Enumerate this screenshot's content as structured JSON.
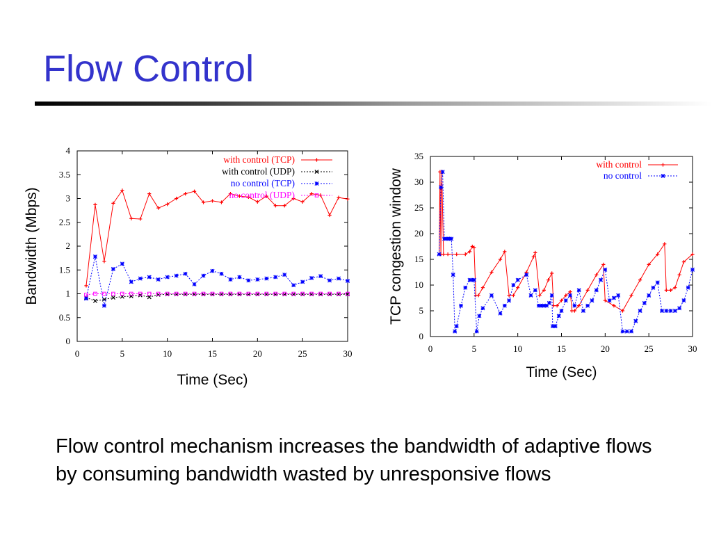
{
  "slide": {
    "title": "Flow Control",
    "caption": "Flow control mechanism increases the bandwidth of adaptive flows by consuming bandwidth wasted by unresponsive flows"
  },
  "chart_data": [
    {
      "type": "line",
      "xlabel": "Time (Sec)",
      "ylabel": "Bandwidth (Mbps)",
      "xlim": [
        0,
        30
      ],
      "ylim": [
        0,
        4
      ],
      "xticks": [
        "0",
        "5",
        "10",
        "15",
        "20",
        "25",
        "30"
      ],
      "yticks": [
        "0",
        "0.5",
        "1",
        "1.5",
        "2",
        "2.5",
        "3",
        "3.5",
        "4"
      ],
      "legend_position": "top-right",
      "grid": false,
      "series": [
        {
          "name": "with control (TCP)",
          "color": "#ff0000",
          "dash": "solid",
          "marker": "plus",
          "x": [
            1,
            2,
            3,
            4,
            5,
            6,
            7,
            8,
            9,
            10,
            11,
            12,
            13,
            14,
            15,
            16,
            17,
            18,
            19,
            20,
            21,
            22,
            23,
            24,
            25,
            26,
            27,
            28,
            29,
            30
          ],
          "y": [
            1.17,
            2.87,
            1.68,
            2.9,
            3.17,
            2.58,
            2.57,
            3.1,
            2.8,
            2.88,
            3.0,
            3.1,
            3.15,
            2.92,
            2.95,
            2.92,
            3.1,
            3.05,
            3.03,
            2.93,
            3.05,
            2.85,
            2.85,
            3.0,
            2.93,
            3.1,
            3.07,
            2.65,
            3.02,
            2.99
          ]
        },
        {
          "name": "with control (UDP)",
          "color": "#000000",
          "dash": "2,2",
          "marker": "cross",
          "x": [
            1,
            2,
            3,
            4,
            5,
            6,
            7,
            8,
            9,
            10,
            11,
            12,
            13,
            14,
            15,
            16,
            17,
            18,
            19,
            20,
            21,
            22,
            23,
            24,
            25,
            26,
            27,
            28,
            29,
            30
          ],
          "y": [
            0.92,
            0.85,
            0.88,
            0.92,
            0.94,
            0.95,
            0.97,
            0.93,
            0.98,
            0.99,
            0.99,
            0.99,
            0.99,
            0.99,
            0.99,
            0.99,
            0.99,
            0.99,
            0.99,
            0.99,
            0.99,
            0.99,
            0.99,
            0.99,
            0.99,
            0.99,
            0.99,
            0.99,
            0.99,
            0.99
          ]
        },
        {
          "name": "no control (TCP)",
          "color": "#0000ff",
          "dash": "2,2",
          "marker": "star",
          "x": [
            1,
            2,
            3,
            4,
            5,
            6,
            7,
            8,
            9,
            10,
            11,
            12,
            13,
            14,
            15,
            16,
            17,
            18,
            19,
            20,
            21,
            22,
            23,
            24,
            25,
            26,
            27,
            28,
            29,
            30
          ],
          "y": [
            0.9,
            1.78,
            0.75,
            1.52,
            1.63,
            1.25,
            1.32,
            1.35,
            1.3,
            1.35,
            1.38,
            1.42,
            1.2,
            1.38,
            1.48,
            1.42,
            1.3,
            1.35,
            1.28,
            1.3,
            1.32,
            1.35,
            1.4,
            1.18,
            1.25,
            1.33,
            1.37,
            1.28,
            1.32,
            1.27
          ]
        },
        {
          "name": "no control (UDP)",
          "color": "#ff00ff",
          "dash": "2,2",
          "marker": "square",
          "x": [
            1,
            2,
            3,
            4,
            5,
            6,
            7,
            8,
            9,
            10,
            11,
            12,
            13,
            14,
            15,
            16,
            17,
            18,
            19,
            20,
            21,
            22,
            23,
            24,
            25,
            26,
            27,
            28,
            29,
            30
          ],
          "y": [
            0.98,
            1.0,
            1.0,
            1.0,
            1.0,
            1.0,
            1.0,
            1.0,
            1.0,
            1.0,
            1.0,
            1.0,
            1.0,
            1.0,
            1.0,
            1.0,
            1.0,
            1.0,
            1.0,
            1.0,
            1.0,
            1.0,
            1.0,
            1.0,
            1.0,
            1.0,
            1.0,
            1.0,
            1.0,
            1.0
          ]
        }
      ]
    },
    {
      "type": "line",
      "xlabel": "Time (Sec)",
      "ylabel": "TCP congestion window",
      "xlim": [
        0,
        30
      ],
      "ylim": [
        0,
        35
      ],
      "xticks": [
        "0",
        "5",
        "10",
        "15",
        "20",
        "25",
        "30"
      ],
      "yticks": [
        "0",
        "5",
        "10",
        "15",
        "20",
        "25",
        "30",
        "35"
      ],
      "legend_position": "top-right",
      "grid": false,
      "series": [
        {
          "name": "with control",
          "color": "#ff0000",
          "dash": "solid",
          "marker": "plus",
          "x": [
            1,
            1.1,
            1.2,
            1.3,
            1.5,
            2,
            3,
            4,
            4.5,
            4.8,
            5,
            5.2,
            5.5,
            6,
            7,
            8,
            8.5,
            9,
            9.5,
            10,
            11,
            11.8,
            12,
            12.5,
            13,
            13.5,
            13.9,
            14.1,
            14.5,
            15,
            15.5,
            16,
            16.2,
            16.5,
            17,
            18,
            19,
            19.8,
            20,
            21,
            22,
            23,
            24,
            25,
            26,
            26.8,
            27,
            27.5,
            28,
            28.5,
            29,
            30
          ],
          "y": [
            16,
            32,
            16,
            32,
            16,
            16,
            16,
            16,
            16.5,
            17.5,
            17.3,
            8,
            8,
            9.5,
            12.5,
            15,
            16.5,
            8,
            8,
            9.5,
            12.5,
            15.5,
            16.3,
            8,
            9,
            11,
            12.3,
            6,
            6,
            7,
            8,
            8.7,
            5,
            5,
            6,
            9,
            12,
            14,
            7,
            6,
            5,
            8,
            11,
            14,
            16,
            18,
            9,
            9,
            9.5,
            12,
            14.5,
            16
          ]
        },
        {
          "name": "no control",
          "color": "#0000ff",
          "dash": "2,2",
          "marker": "star",
          "x": [
            1,
            1.2,
            1.4,
            1.6,
            1.8,
            2,
            2.2,
            2.4,
            2.6,
            2.8,
            3,
            3.5,
            4,
            4.5,
            4.8,
            5,
            5.3,
            5.6,
            6,
            7,
            8,
            8.5,
            9,
            9.5,
            10,
            11,
            11.5,
            12,
            12.4,
            12.7,
            13,
            13.3,
            13.6,
            13.9,
            14,
            14.3,
            14.7,
            15,
            15.5,
            16,
            16.5,
            17,
            17.5,
            18,
            18.5,
            19,
            19.5,
            20,
            20.5,
            21,
            21.5,
            22,
            22.5,
            23,
            23.5,
            24,
            24.5,
            25,
            25.5,
            26,
            26.5,
            27,
            27.5,
            28,
            28.5,
            29,
            29.5,
            30
          ],
          "y": [
            16,
            29,
            32,
            19,
            19,
            19,
            19,
            19,
            12,
            1,
            2,
            6,
            9.5,
            11,
            11,
            11,
            1,
            4,
            5.5,
            8,
            4.5,
            6,
            7,
            10,
            11,
            12,
            8,
            9,
            6,
            6,
            6,
            6,
            6.5,
            8,
            2,
            2,
            4,
            5,
            7,
            8,
            6,
            9,
            5,
            6,
            7,
            9,
            11,
            13,
            7,
            7.5,
            8,
            1,
            1,
            1,
            3,
            5,
            6.5,
            8,
            9.5,
            10.5,
            5,
            5,
            5,
            5,
            5.5,
            7,
            9.5,
            13
          ]
        }
      ]
    }
  ]
}
